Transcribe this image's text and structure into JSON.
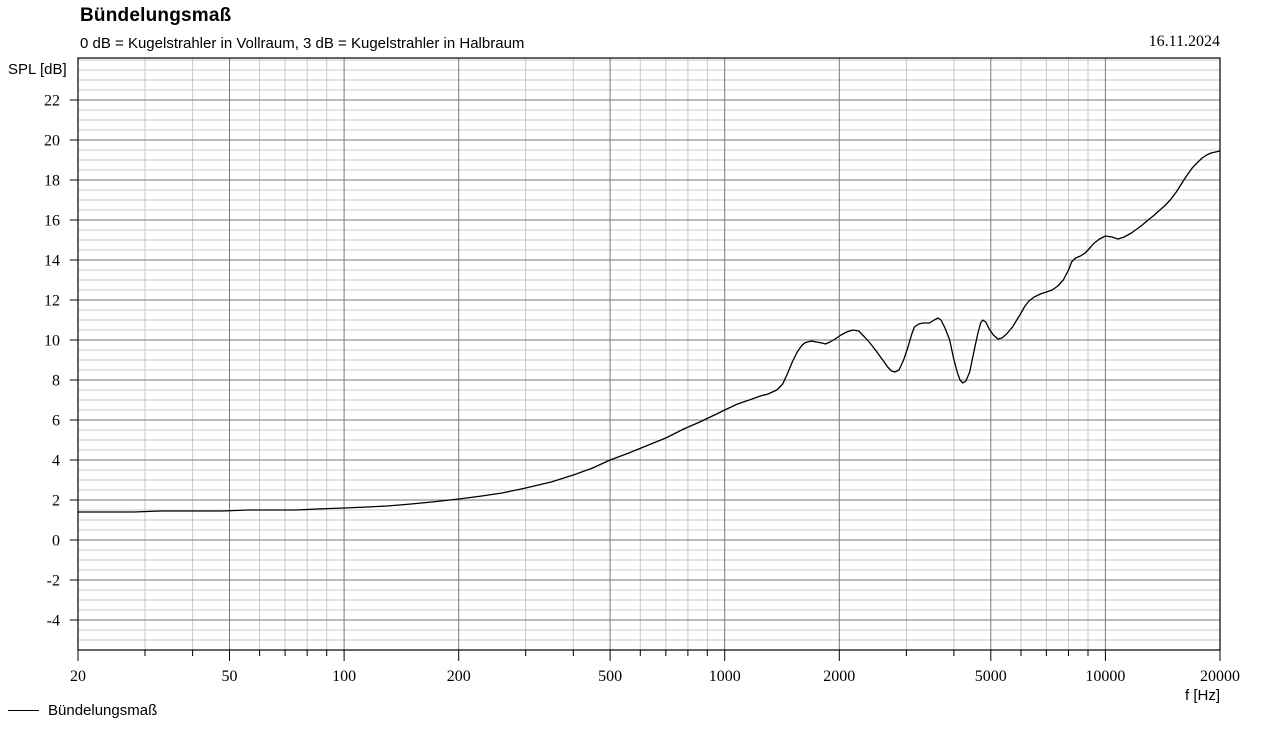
{
  "header": {
    "title": "Bündelungsmaß",
    "subtitle": "0 dB = Kugelstrahler in Vollraum, 3 dB = Kugelstrahler in Halbraum",
    "date": "16.11.2024"
  },
  "axes": {
    "y_unit_label": "SPL [dB]",
    "x_unit_label": "f [Hz]"
  },
  "legend": {
    "series_label": "Bündelungsmaß"
  },
  "colors": {
    "background": "#ffffff",
    "text": "#000000",
    "curve": "#000000",
    "frame": "#000000",
    "grid_major": "#7a7a7a",
    "grid_minor": "#c9c9c9"
  },
  "chart_data": {
    "type": "line",
    "title": "Bündelungsmaß",
    "subtitle": "0 dB = Kugelstrahler in Vollraum, 3 dB = Kugelstrahler in Halbraum",
    "date_annotation": "16.11.2024",
    "xlabel": "f [Hz]",
    "ylabel": "SPL [dB]",
    "x_scale": "log",
    "grid": true,
    "legend_position": "bottom-left",
    "xlim": [
      20,
      20000
    ],
    "ylim": [
      -5.5,
      24.1
    ],
    "x_major_ticks": [
      20,
      50,
      100,
      200,
      500,
      1000,
      2000,
      5000,
      10000,
      20000
    ],
    "x_major_tick_labels": [
      "20",
      "50",
      "100",
      "200",
      "500",
      "1000",
      "2000",
      "5000",
      "10000",
      "20000"
    ],
    "y_major_ticks": [
      -4,
      -2,
      0,
      2,
      4,
      6,
      8,
      10,
      12,
      14,
      16,
      18,
      20,
      22
    ],
    "y_major_tick_labels": [
      "-4",
      "-2",
      "0",
      "2",
      "4",
      "6",
      "8",
      "10",
      "12",
      "14",
      "16",
      "18",
      "20",
      "22"
    ],
    "y_minor_step": 0.5,
    "series": [
      {
        "name": "Bündelungsmaß",
        "color": "#000000",
        "points": [
          [
            20,
            1.4
          ],
          [
            24,
            1.4
          ],
          [
            28,
            1.4
          ],
          [
            33,
            1.45
          ],
          [
            40,
            1.45
          ],
          [
            48,
            1.45
          ],
          [
            56,
            1.5
          ],
          [
            65,
            1.5
          ],
          [
            75,
            1.5
          ],
          [
            85,
            1.55
          ],
          [
            100,
            1.6
          ],
          [
            115,
            1.65
          ],
          [
            130,
            1.7
          ],
          [
            150,
            1.8
          ],
          [
            170,
            1.9
          ],
          [
            200,
            2.05
          ],
          [
            230,
            2.2
          ],
          [
            260,
            2.35
          ],
          [
            300,
            2.6
          ],
          [
            350,
            2.9
          ],
          [
            400,
            3.25
          ],
          [
            450,
            3.6
          ],
          [
            500,
            4.0
          ],
          [
            560,
            4.35
          ],
          [
            630,
            4.75
          ],
          [
            700,
            5.1
          ],
          [
            780,
            5.55
          ],
          [
            860,
            5.9
          ],
          [
            940,
            6.25
          ],
          [
            1000,
            6.5
          ],
          [
            1080,
            6.8
          ],
          [
            1160,
            7.0
          ],
          [
            1240,
            7.2
          ],
          [
            1300,
            7.3
          ],
          [
            1370,
            7.5
          ],
          [
            1420,
            7.8
          ],
          [
            1460,
            8.3
          ],
          [
            1505,
            8.9
          ],
          [
            1550,
            9.4
          ],
          [
            1590,
            9.7
          ],
          [
            1620,
            9.85
          ],
          [
            1650,
            9.9
          ],
          [
            1690,
            9.95
          ],
          [
            1740,
            9.9
          ],
          [
            1800,
            9.85
          ],
          [
            1840,
            9.8
          ],
          [
            1890,
            9.9
          ],
          [
            1950,
            10.05
          ],
          [
            2020,
            10.25
          ],
          [
            2090,
            10.4
          ],
          [
            2170,
            10.5
          ],
          [
            2250,
            10.45
          ],
          [
            2330,
            10.15
          ],
          [
            2420,
            9.8
          ],
          [
            2510,
            9.4
          ],
          [
            2600,
            9.0
          ],
          [
            2680,
            8.65
          ],
          [
            2740,
            8.45
          ],
          [
            2800,
            8.4
          ],
          [
            2870,
            8.5
          ],
          [
            2950,
            9.0
          ],
          [
            3030,
            9.65
          ],
          [
            3100,
            10.3
          ],
          [
            3150,
            10.65
          ],
          [
            3230,
            10.8
          ],
          [
            3320,
            10.85
          ],
          [
            3450,
            10.85
          ],
          [
            3550,
            11.0
          ],
          [
            3630,
            11.1
          ],
          [
            3700,
            11.0
          ],
          [
            3790,
            10.6
          ],
          [
            3900,
            10.0
          ],
          [
            3990,
            9.1
          ],
          [
            4080,
            8.4
          ],
          [
            4150,
            8.0
          ],
          [
            4220,
            7.85
          ],
          [
            4300,
            7.95
          ],
          [
            4400,
            8.4
          ],
          [
            4500,
            9.3
          ],
          [
            4620,
            10.3
          ],
          [
            4700,
            10.85
          ],
          [
            4760,
            11.0
          ],
          [
            4850,
            10.9
          ],
          [
            4950,
            10.55
          ],
          [
            5080,
            10.25
          ],
          [
            5220,
            10.05
          ],
          [
            5350,
            10.1
          ],
          [
            5500,
            10.3
          ],
          [
            5700,
            10.65
          ],
          [
            5850,
            11.0
          ],
          [
            6000,
            11.35
          ],
          [
            6150,
            11.7
          ],
          [
            6300,
            11.95
          ],
          [
            6500,
            12.15
          ],
          [
            6750,
            12.3
          ],
          [
            7000,
            12.4
          ],
          [
            7250,
            12.5
          ],
          [
            7500,
            12.7
          ],
          [
            7750,
            13.0
          ],
          [
            8000,
            13.5
          ],
          [
            8150,
            13.9
          ],
          [
            8350,
            14.1
          ],
          [
            8600,
            14.2
          ],
          [
            8850,
            14.35
          ],
          [
            9100,
            14.6
          ],
          [
            9350,
            14.85
          ],
          [
            9650,
            15.05
          ],
          [
            10000,
            15.2
          ],
          [
            10400,
            15.15
          ],
          [
            10800,
            15.05
          ],
          [
            11200,
            15.15
          ],
          [
            11700,
            15.35
          ],
          [
            12100,
            15.55
          ],
          [
            12500,
            15.75
          ],
          [
            12950,
            16.0
          ],
          [
            13350,
            16.2
          ],
          [
            13800,
            16.45
          ],
          [
            14300,
            16.7
          ],
          [
            14800,
            17.0
          ],
          [
            15350,
            17.4
          ],
          [
            15950,
            17.9
          ],
          [
            16400,
            18.25
          ],
          [
            16900,
            18.6
          ],
          [
            17400,
            18.85
          ],
          [
            17950,
            19.1
          ],
          [
            18450,
            19.25
          ],
          [
            18950,
            19.35
          ],
          [
            19450,
            19.4
          ],
          [
            20000,
            19.45
          ]
        ]
      }
    ]
  }
}
